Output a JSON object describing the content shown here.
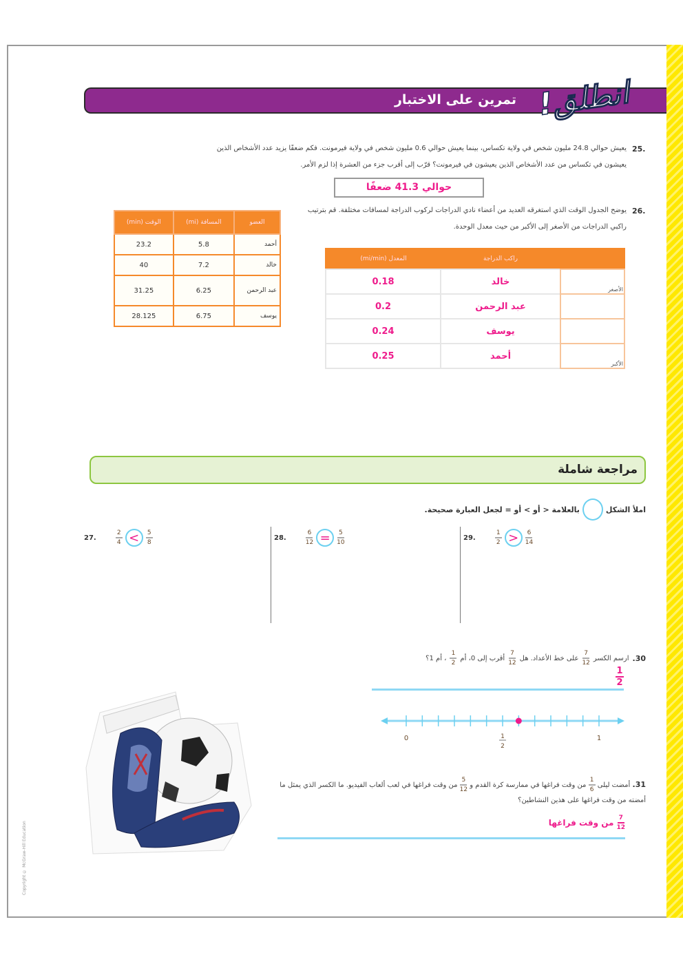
{
  "header": {
    "logo_text": "انطلق!",
    "title": "تمرين على الاختبار"
  },
  "p25": {
    "number": "25.",
    "text": "يعيش حوالي 24.8 مليون شخص في ولاية تكساس، بينما يعيش حوالي 0.6 مليون شخص في ولاية فيرمونت. فكم ضعفًا يزيد عدد الأشخاص الذين يعيشون في تكساس من عدد الأشخاص الذين يعيشون في فيرمونت؟ قرّب إلى أقرب جزء من العشرة إذا لزم الأمر.",
    "answer": "حوالي 41.3 ضعفًا"
  },
  "p26": {
    "number": "26.",
    "text": "يوضح الجدول الوقت الذي استغرقه العديد من أعضاء نادي الدراجات لركوب الدراجة لمسافات مختلفة. قم بترتيب راكبي الدراجات من الأصغر إلى الأكبر من حيث معدل الوحدة.",
    "data_table": {
      "headers": [
        "العضو",
        "المسافة (mi)",
        "الوقت (min)"
      ],
      "rows": [
        [
          "أحمد",
          "5.8",
          "23.2"
        ],
        [
          "خالد",
          "7.2",
          "40"
        ],
        [
          "عبد الرحمن",
          "6.25",
          "31.25"
        ],
        [
          "يوسف",
          "6.75",
          "28.125"
        ]
      ]
    },
    "answer_table": {
      "headers": [
        "",
        "راكب الدراجة",
        "المعدل (mi/min)"
      ],
      "smallest_label": "الأصغر",
      "largest_label": "الأكبر",
      "rows": [
        [
          "خالد",
          "0.18"
        ],
        [
          "عبد الرحمن",
          "0.2"
        ],
        [
          "يوسف",
          "0.24"
        ],
        [
          "أحمد",
          "0.25"
        ]
      ]
    }
  },
  "review": {
    "title": "مراجعة شاملة",
    "instruction_pre": "املأ الشكل",
    "instruction_post": "بالعلامة < أو > أو = لجعل العبارة صحيحة.",
    "items": [
      {
        "number": "27.",
        "left": [
          "2",
          "4"
        ],
        "symbol": "<",
        "right": [
          "5",
          "8"
        ]
      },
      {
        "number": "28.",
        "left": [
          "6",
          "12"
        ],
        "symbol": "=",
        "right": [
          "5",
          "10"
        ]
      },
      {
        "number": "29.",
        "left": [
          "1",
          "2"
        ],
        "symbol": ">",
        "right": [
          "6",
          "14"
        ]
      }
    ]
  },
  "p30": {
    "number": "30.",
    "text_a": "ارسم الكسر",
    "frac": [
      "7",
      "12"
    ],
    "text_b": "على خط الأعداد. هل",
    "text_c": "أقرب إلى 0، أم",
    "half": [
      "1",
      "2"
    ],
    "text_d": "، أم 1؟",
    "answer": [
      "1",
      "2"
    ],
    "number_line": {
      "min": 0,
      "max": 1,
      "divisions": 12,
      "point": 0.5833,
      "labels": [
        "0",
        "1"
      ],
      "half_label": [
        "1",
        "2"
      ]
    }
  },
  "p31": {
    "number": "31.",
    "text_a": "أمضت ليلى",
    "f1": [
      "1",
      "6"
    ],
    "text_b": "من وقت فراغها في ممارسة كرة القدم و",
    "f2": [
      "5",
      "12"
    ],
    "text_c": "من وقت فراغها في لعب ألعاب الفيديو. ما الكسر الذي يمثل ما أمضته من وقت فراغها على هذين النشاطين؟",
    "answer_frac": [
      "7",
      "12"
    ],
    "answer_text": "من وقت فراغها"
  },
  "copyright": "Copyright © McGraw-Hill Education",
  "colors": {
    "purple": "#8e2a8e",
    "orange": "#f5892a",
    "pink": "#ee1c8c",
    "blue": "#8ed8f4",
    "green": "#8cc63f",
    "yellow": "#ffe800"
  }
}
